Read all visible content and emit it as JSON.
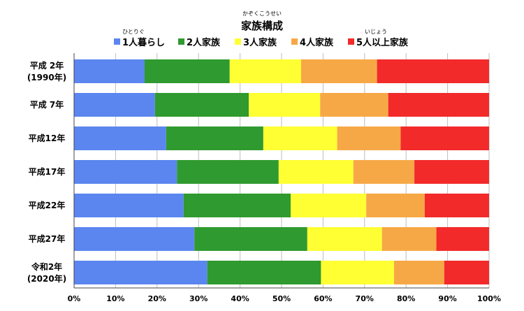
{
  "chart_data": {
    "type": "bar",
    "orientation": "horizontal",
    "stacked": true,
    "title": "家族構成",
    "title_ruby": "かぞくこうせい",
    "categories": [
      [
        "平成 2年",
        "(1990年)"
      ],
      [
        "平成 7年"
      ],
      [
        "平成12年"
      ],
      [
        "平成17年"
      ],
      [
        "平成22年"
      ],
      [
        "平成27年"
      ],
      [
        "令和2年",
        "(2020年)"
      ]
    ],
    "series": [
      {
        "name": "1人暮らし",
        "ruby": "ひとりぐ",
        "color": "#5b86f0",
        "values": [
          17.0,
          19.5,
          22.2,
          24.8,
          26.4,
          29.0,
          32.1
        ]
      },
      {
        "name": "2人家族",
        "color": "#2f9a2f",
        "values": [
          20.5,
          22.6,
          23.4,
          24.5,
          25.8,
          27.2,
          27.4
        ]
      },
      {
        "name": "3人家族",
        "color": "#ffff33",
        "values": [
          17.2,
          17.2,
          17.8,
          18.0,
          18.2,
          18.0,
          17.6
        ]
      },
      {
        "name": "4人家族",
        "color": "#f7a846",
        "values": [
          18.3,
          16.4,
          15.3,
          14.7,
          14.1,
          13.1,
          12.1
        ]
      },
      {
        "name": "5人以上家族",
        "ruby": "いじょう",
        "color": "#f22a2a",
        "values": [
          27.0,
          24.3,
          21.3,
          18.0,
          15.5,
          12.7,
          10.8
        ]
      }
    ],
    "xlim": [
      0,
      100
    ],
    "x_ticks": [
      "0%",
      "10%",
      "20%",
      "30%",
      "40%",
      "50%",
      "60%",
      "70%",
      "80%",
      "90%",
      "100%"
    ],
    "grid": true,
    "legend_position": "top"
  }
}
